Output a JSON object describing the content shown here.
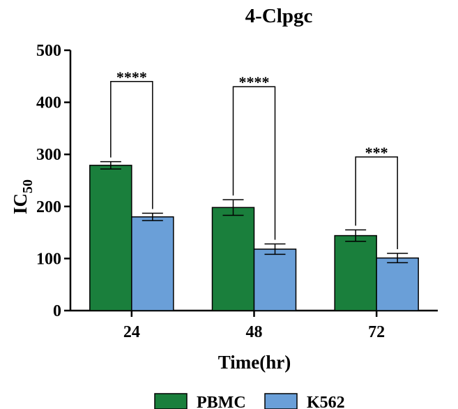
{
  "chart_data": {
    "type": "bar",
    "title": "4-Clpgc",
    "xlabel": "Time(hr)",
    "ylabel_main": "IC",
    "ylabel_sub": "50",
    "ylim": [
      0,
      500
    ],
    "yticks": [
      "0",
      "100",
      "200",
      "300",
      "400",
      "500"
    ],
    "ytick_values": [
      0,
      100,
      200,
      300,
      400,
      500
    ],
    "categories": [
      "24",
      "48",
      "72"
    ],
    "series": [
      {
        "name": "PBMC",
        "color": "#1a7f3c",
        "values": [
          279,
          198,
          144
        ],
        "errors": [
          7,
          15,
          11
        ]
      },
      {
        "name": "K562",
        "color": "#6a9fd8",
        "values": [
          180,
          118,
          101
        ],
        "errors": [
          7,
          10,
          9
        ]
      }
    ],
    "significance": [
      "****",
      "****",
      "***"
    ],
    "significance_bracket_top": [
      440,
      430,
      295
    ],
    "legend_position": "bottom-center"
  }
}
